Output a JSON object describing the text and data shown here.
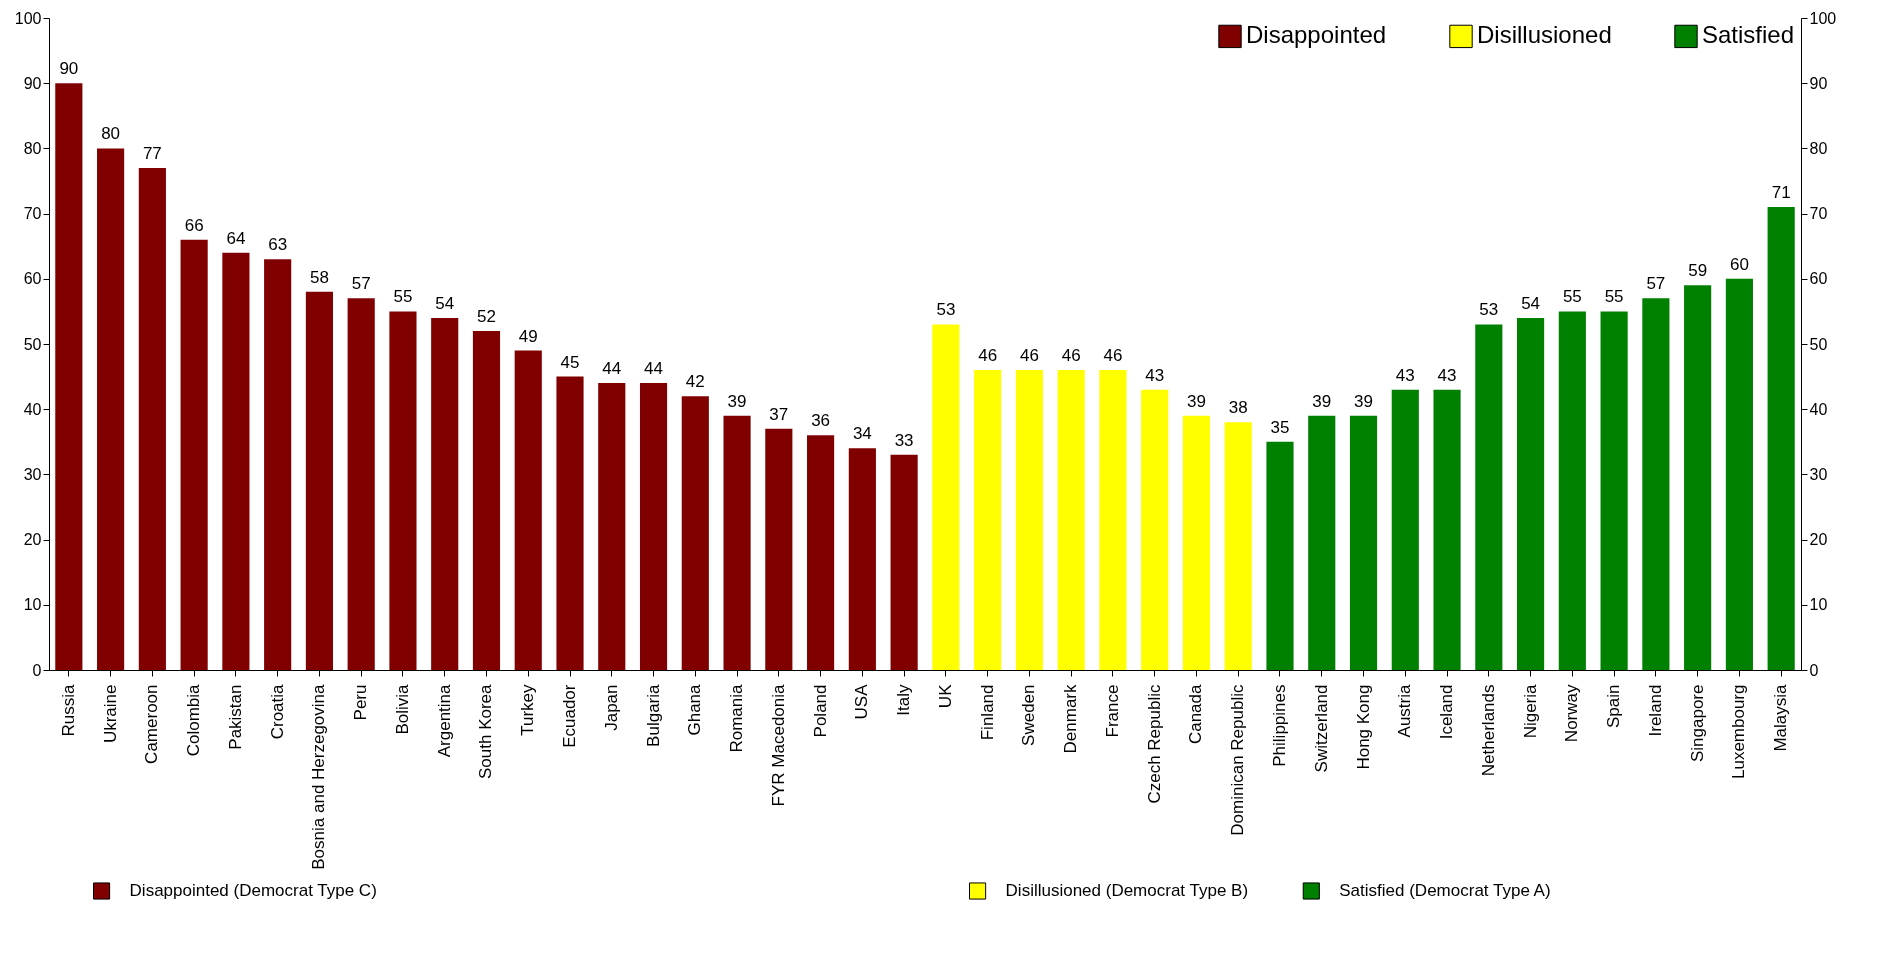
{
  "chart_data": {
    "type": "bar",
    "categories": [
      "Russia",
      "Ukraine",
      "Cameroon",
      "Colombia",
      "Pakistan",
      "Croatia",
      "Bosnia and Herzegovina",
      "Peru",
      "Bolivia",
      "Argentina",
      "South Korea",
      "Turkey",
      "Ecuador",
      "Japan",
      "Bulgaria",
      "Ghana",
      "Romania",
      "FYR Macedonia",
      "Poland",
      "USA",
      "Italy",
      "UK",
      "Finland",
      "Sweden",
      "Denmark",
      "France",
      "Czech Republic",
      "Canada",
      "Dominican Republic",
      "Philippines",
      "Switzerland",
      "Hong Kong",
      "Austria",
      "Iceland",
      "Netherlands",
      "Nigeria",
      "Norway",
      "Spain",
      "Ireland",
      "Singapore",
      "Luxembourg",
      "Malaysia"
    ],
    "series": [
      {
        "name": "Disappointed",
        "color": "#800000",
        "values": [
          90,
          80,
          77,
          66,
          64,
          63,
          58,
          57,
          55,
          54,
          52,
          49,
          45,
          44,
          44,
          42,
          39,
          37,
          36,
          34,
          33,
          null,
          null,
          null,
          null,
          null,
          null,
          null,
          null,
          null,
          null,
          null,
          null,
          null,
          null,
          null,
          null,
          null,
          null,
          null,
          null,
          null
        ]
      },
      {
        "name": "Disillusioned",
        "color": "#ffff00",
        "values": [
          null,
          null,
          null,
          null,
          null,
          null,
          null,
          null,
          null,
          null,
          null,
          null,
          null,
          null,
          null,
          null,
          null,
          null,
          null,
          null,
          null,
          53,
          46,
          46,
          46,
          46,
          43,
          39,
          38,
          null,
          null,
          null,
          null,
          null,
          null,
          null,
          null,
          null,
          null,
          null,
          null,
          null
        ]
      },
      {
        "name": "Satisfied",
        "color": "#008000",
        "values": [
          null,
          null,
          null,
          null,
          null,
          null,
          null,
          null,
          null,
          null,
          null,
          null,
          null,
          null,
          null,
          null,
          null,
          null,
          null,
          null,
          null,
          null,
          null,
          null,
          null,
          null,
          null,
          null,
          null,
          35,
          39,
          39,
          43,
          43,
          53,
          54,
          55,
          55,
          57,
          59,
          60,
          71
        ]
      }
    ],
    "ylim": [
      0,
      100
    ],
    "yticks": [
      0,
      10,
      20,
      30,
      40,
      50,
      60,
      70,
      80,
      90,
      100
    ],
    "y2lim": [
      0,
      100
    ],
    "y2ticks": [
      0,
      10,
      20,
      30,
      40,
      50,
      60,
      70,
      80,
      90,
      100
    ],
    "data_labels": true,
    "grid": false,
    "legend": "top right",
    "annotations": [
      "Disappointed (Democrat Type C)",
      "Disillusioned (Democrat Type B)",
      "Satisfied (Democrat Type A)"
    ]
  }
}
